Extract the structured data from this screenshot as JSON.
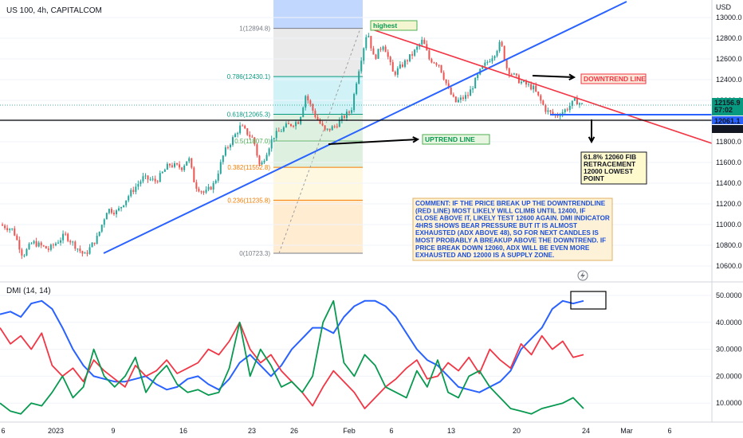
{
  "header": {
    "symbol": "US 100, 4h, CAPITALCOM",
    "currency": "USD"
  },
  "chart_data": [
    {
      "type": "candlestick",
      "symbol": "US 100",
      "interval": "4h",
      "source": "CAPITALCOM",
      "y_ticks": [
        13000,
        12800,
        12600,
        12400,
        12200,
        12000,
        11800,
        11600,
        11400,
        11200,
        11000,
        10800,
        10600
      ],
      "y_tick_labels": [
        "13000.0",
        "12800.0",
        "12600.0",
        "12400.0",
        "12200.0",
        "12000.0",
        "11800.0",
        "11600.0",
        "11400.0",
        "11200.0",
        "11000.0",
        "10800.0",
        "10600.0"
      ],
      "ylim": [
        10500,
        13150
      ],
      "x_tick_labels": [
        "6",
        "2023",
        "9",
        "16",
        "23",
        "26",
        "Feb",
        "6",
        "13",
        "20",
        "24",
        "Mar",
        "6"
      ],
      "price_path": [
        [
          0,
          11000
        ],
        [
          0.02,
          10950
        ],
        [
          0.035,
          10700
        ],
        [
          0.05,
          10830
        ],
        [
          0.075,
          10760
        ],
        [
          0.1,
          10900
        ],
        [
          0.13,
          10700
        ],
        [
          0.15,
          10880
        ],
        [
          0.165,
          11150
        ],
        [
          0.18,
          11120
        ],
        [
          0.2,
          11300
        ],
        [
          0.22,
          11450
        ],
        [
          0.24,
          11420
        ],
        [
          0.26,
          11580
        ],
        [
          0.28,
          11550
        ],
        [
          0.29,
          11650
        ],
        [
          0.3,
          11380
        ],
        [
          0.315,
          11300
        ],
        [
          0.33,
          11400
        ],
        [
          0.345,
          11700
        ],
        [
          0.36,
          11850
        ],
        [
          0.37,
          11950
        ],
        [
          0.39,
          11820
        ],
        [
          0.4,
          11550
        ],
        [
          0.42,
          11850
        ],
        [
          0.44,
          11950
        ],
        [
          0.46,
          12000
        ],
        [
          0.47,
          12250
        ],
        [
          0.485,
          12050
        ],
        [
          0.5,
          11900
        ],
        [
          0.515,
          11950
        ],
        [
          0.53,
          12050
        ],
        [
          0.54,
          12100
        ],
        [
          0.55,
          12450
        ],
        [
          0.565,
          12880
        ],
        [
          0.575,
          12600
        ],
        [
          0.59,
          12750
        ],
        [
          0.605,
          12450
        ],
        [
          0.62,
          12550
        ],
        [
          0.635,
          12650
        ],
        [
          0.65,
          12780
        ],
        [
          0.66,
          12600
        ],
        [
          0.675,
          12550
        ],
        [
          0.69,
          12300
        ],
        [
          0.7,
          12180
        ],
        [
          0.72,
          12250
        ],
        [
          0.74,
          12500
        ],
        [
          0.76,
          12650
        ],
        [
          0.77,
          12760
        ],
        [
          0.78,
          12500
        ],
        [
          0.8,
          12380
        ],
        [
          0.82,
          12320
        ],
        [
          0.84,
          12100
        ],
        [
          0.855,
          12050
        ],
        [
          0.87,
          12110
        ],
        [
          0.885,
          12200
        ],
        [
          0.895,
          12156.9
        ]
      ],
      "current_price": "12156.9",
      "countdown": "57:02",
      "support_level_label": "12061.1",
      "horizontal_level_label": "12000.6",
      "fib_levels": [
        {
          "label": "1(12894.8)",
          "value": 12894.8
        },
        {
          "label": "0.786(12430.1)",
          "value": 12430.1
        },
        {
          "label": "0.618(12065.3)",
          "value": 12065.3
        },
        {
          "label": "0.5(11807.0)",
          "value": 11807.0
        },
        {
          "label": "0.382(11552.8)",
          "value": 11552.8
        },
        {
          "label": "0.236(11235.8)",
          "value": 11235.8
        },
        {
          "label": "0(10723.3)",
          "value": 10723.3
        }
      ],
      "annotations": {
        "highest": "highest",
        "downtrend": "DOWNTREND LINE",
        "uptrend": "UPTREND LINE",
        "fib_note": [
          "61.8% 12060 FIB",
          "RETRACEMENT",
          " 12000 LOWEST",
          "POINT"
        ],
        "comment": [
          "COMMENT: IF THE PRICE BREAK UP THE DOWNTRENDLINE",
          "(RED LINE) MOST LIKELY WILL CLIMB UNTIL 12400, IF",
          "CLOSE ABOVE IT, LIKELY TEST 12600 AGAIN. DMI INDICATOR",
          "4HRS SHOWS BEAR PRESSURE BUT IT IS ALMOST",
          "EXHAUSTED (ADX ABOVE 48), SO FOR NEXT CANDLES IS",
          "MOST PROBABLY A BREAKUP ABOVE THE DOWNTREND. IF",
          "PRICE BREAK DOWN 12060, ADX WILL BE EVEN MORE",
          "EXHAUSTED AND 12000 IS A SUPPLY ZONE."
        ]
      },
      "colors": {
        "up": "#26a69a",
        "down": "#ef5350",
        "uptrend": "#2962ff",
        "downtrend": "#f23645"
      }
    },
    {
      "type": "line",
      "title": "DMI (14, 14)",
      "y_ticks": [
        10,
        20,
        30,
        40,
        50
      ],
      "y_tick_labels": [
        "10.0000",
        "20.0000",
        "30.0000",
        "40.0000",
        "50.0000"
      ],
      "ylim": [
        3,
        54
      ],
      "series": [
        {
          "color": "#2962ff",
          "values": [
            43,
            44,
            42,
            47,
            48,
            45,
            38,
            30,
            24,
            20,
            19,
            18,
            18,
            19,
            20,
            17,
            15,
            16,
            19,
            20,
            17,
            15,
            19,
            25,
            28,
            24,
            20,
            24,
            30,
            34,
            38,
            38,
            36,
            42,
            46,
            48,
            48,
            46,
            42,
            36,
            30,
            26,
            24,
            20,
            16,
            15,
            14,
            16,
            18,
            22,
            30,
            34,
            38,
            45,
            48,
            47,
            48
          ]
        },
        {
          "color": "#f23645",
          "values": [
            38,
            32,
            35,
            30,
            36,
            24,
            20,
            23,
            18,
            26,
            22,
            19,
            16,
            24,
            20,
            22,
            26,
            21,
            23,
            25,
            30,
            28,
            33,
            40,
            30,
            25,
            28,
            22,
            18,
            14,
            9,
            16,
            22,
            18,
            14,
            8,
            12,
            16,
            19,
            23,
            26,
            19,
            20,
            25,
            22,
            27,
            21,
            30,
            26,
            23,
            32,
            28,
            35,
            30,
            33,
            27,
            28
          ]
        },
        {
          "color": "#089950",
          "values": [
            10,
            7,
            6,
            10,
            9,
            14,
            20,
            12,
            16,
            30,
            20,
            16,
            20,
            27,
            14,
            20,
            24,
            17,
            14,
            15,
            13,
            14,
            23,
            40,
            20,
            30,
            24,
            16,
            18,
            14,
            20,
            40,
            48,
            25,
            20,
            28,
            24,
            16,
            14,
            12,
            22,
            16,
            26,
            14,
            12,
            20,
            22,
            16,
            12,
            8,
            7,
            6,
            8,
            9,
            10,
            12,
            8
          ]
        }
      ]
    }
  ]
}
